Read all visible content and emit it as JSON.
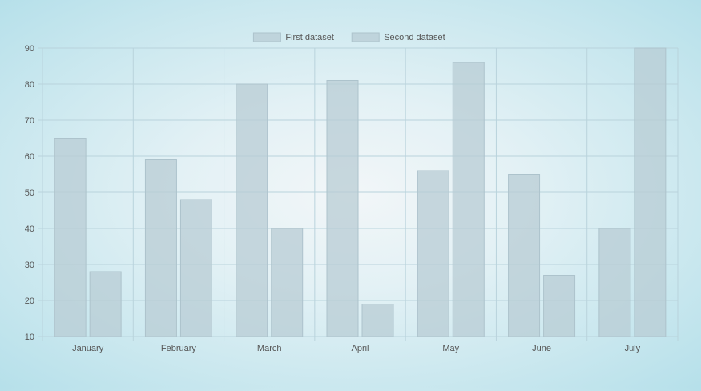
{
  "chart_data": {
    "type": "bar",
    "categories": [
      "January",
      "February",
      "March",
      "April",
      "May",
      "June",
      "July"
    ],
    "series": [
      {
        "name": "First dataset",
        "values": [
          65,
          59,
          80,
          81,
          56,
          55,
          40
        ]
      },
      {
        "name": "Second dataset",
        "values": [
          28,
          48,
          40,
          19,
          86,
          27,
          90
        ]
      }
    ],
    "ylim": [
      10,
      90
    ],
    "yticks": [
      10,
      20,
      30,
      40,
      50,
      60,
      70,
      80,
      90
    ],
    "grid": true,
    "legend": "top-center",
    "colors": {
      "bar_fill": "#b8ccd4",
      "bar_stroke": "#adc3cc",
      "grid": "#b9d3dc",
      "axis_text": "#555555"
    }
  }
}
